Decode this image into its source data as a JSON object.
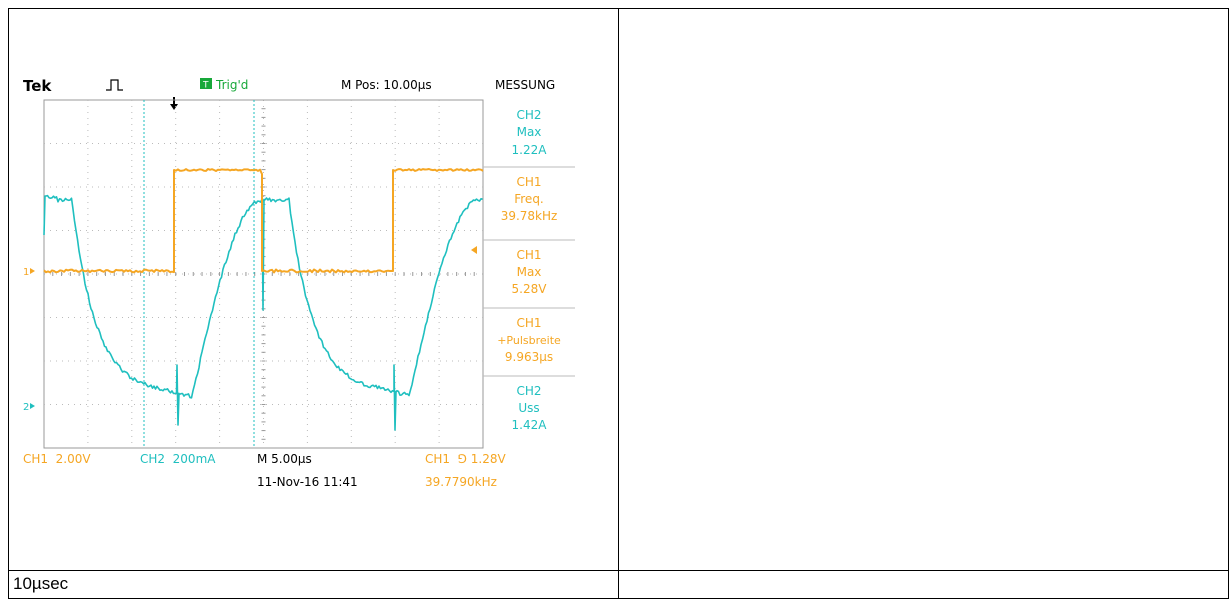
{
  "caption": {
    "left": "10µsec",
    "right": ""
  },
  "scope": {
    "brand": "Tek",
    "trigger_state": "Trig'd",
    "m_pos": "M Pos: 10.00µs",
    "menu_title": "MESSUNG",
    "measurements": [
      {
        "channel": "CH2",
        "label": "Max",
        "value": "1.22A",
        "color": "#1fbfbf"
      },
      {
        "channel": "CH1",
        "label": "Freq.",
        "value": "39.78kHz",
        "color": "#f5a623"
      },
      {
        "channel": "CH1",
        "label": "Max",
        "value": "5.28V",
        "color": "#f5a623"
      },
      {
        "channel": "CH1",
        "label": "+Pulsbreite",
        "value": "9.963µs",
        "color": "#f5a623"
      },
      {
        "channel": "CH2",
        "label": "Uss",
        "value": "1.42A",
        "color": "#1fbfbf"
      }
    ],
    "ch1_scale": "CH1  2.00V",
    "ch2_scale": "CH2  200mA",
    "timebase": "M 5.00µs",
    "trigger_info": "CH1  ⅁ 1.28V",
    "datetime": "11-Nov-16 11:41",
    "trigger_freq": "39.7790kHz",
    "ch1_marker": "1",
    "ch2_marker": "2",
    "colors": {
      "ch1": "#f5a623",
      "ch2": "#1fbfbf",
      "trig_bg": "#18a83a"
    }
  }
}
